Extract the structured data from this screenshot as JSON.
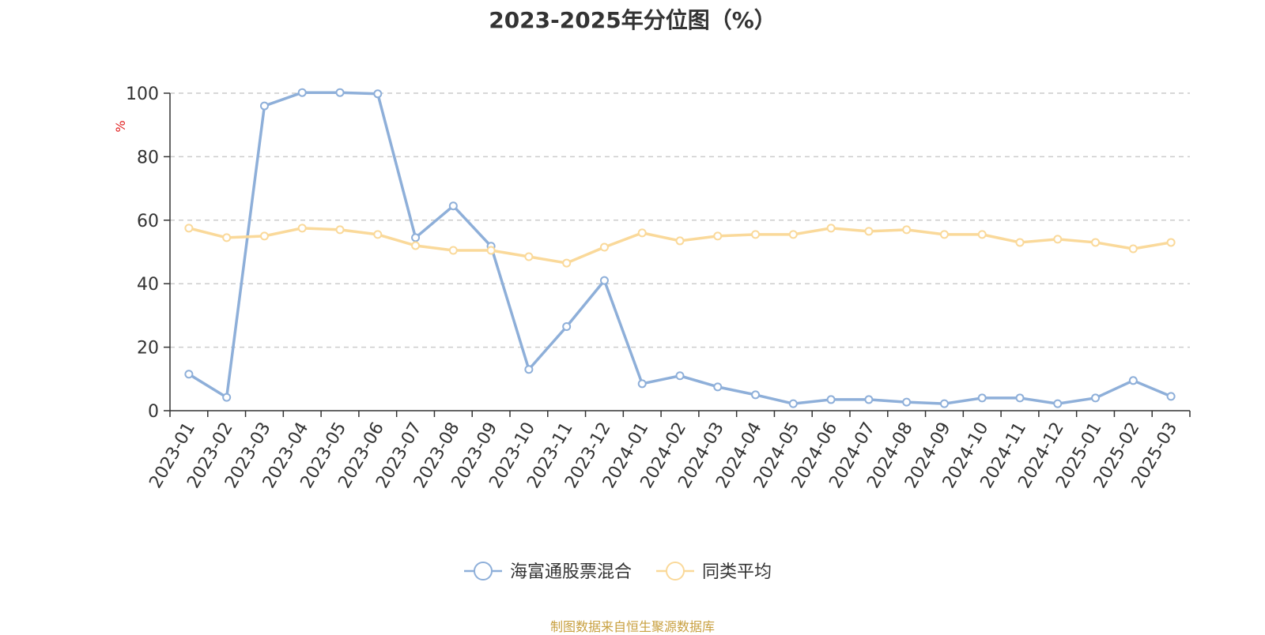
{
  "chart_data": {
    "type": "line",
    "title": "2023-2025年分位图（%）",
    "ylabel": "%",
    "ylim": [
      0,
      100
    ],
    "yticks": [
      0,
      20,
      40,
      60,
      80,
      100
    ],
    "grid": true,
    "legend_position": "bottom-center",
    "categories": [
      "2023-01",
      "2023-02",
      "2023-03",
      "2023-04",
      "2023-05",
      "2023-06",
      "2023-07",
      "2023-08",
      "2023-09",
      "2023-10",
      "2023-11",
      "2023-12",
      "2024-01",
      "2024-02",
      "2024-03",
      "2024-04",
      "2024-05",
      "2024-06",
      "2024-07",
      "2024-08",
      "2024-09",
      "2024-10",
      "2024-11",
      "2024-12",
      "2025-01",
      "2025-02",
      "2025-03"
    ],
    "series": [
      {
        "name": "海富通股票混合",
        "color": "#8eafd9",
        "values": [
          11.5,
          4.2,
          96,
          100.2,
          100.2,
          99.8,
          54.5,
          64.5,
          51.8,
          13,
          26.5,
          41,
          8.5,
          11,
          7.5,
          5,
          2.2,
          3.5,
          3.5,
          2.7,
          2.2,
          4,
          4,
          2.2,
          4,
          9.5,
          4.5
        ]
      },
      {
        "name": "同类平均",
        "color": "#fad99a",
        "values": [
          57.5,
          54.5,
          55,
          57.5,
          57,
          55.5,
          52,
          50.5,
          50.5,
          48.5,
          46.5,
          51.5,
          56,
          53.5,
          55,
          55.5,
          55.5,
          57.5,
          56.5,
          57,
          55.5,
          55.5,
          53,
          54,
          53,
          51,
          53
        ]
      }
    ],
    "source": "制图数据来自恒生聚源数据库",
    "colors": {
      "title": "#333333",
      "axis": "#333333",
      "grid": "#cccccc",
      "ylabel": "#e02020",
      "source": "#c8a040"
    }
  }
}
